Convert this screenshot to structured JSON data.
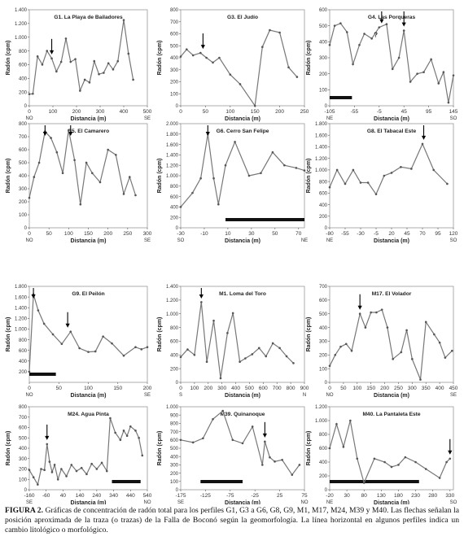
{
  "chart_data": [
    {
      "type": "line",
      "title": "G1. La Playa de Bailadores",
      "xlabel": "Distancia (m)",
      "ylabel": "Radón (cpm)",
      "xlim": [
        0,
        500
      ],
      "ylim": [
        0,
        1400
      ],
      "xticks": [
        0,
        100,
        200,
        300,
        400,
        500
      ],
      "yticks": [
        0,
        200,
        400,
        600,
        800,
        1000,
        1200,
        1400
      ],
      "x": [
        0,
        15,
        35,
        55,
        75,
        95,
        115,
        135,
        155,
        175,
        195,
        215,
        235,
        255,
        275,
        295,
        315,
        335,
        355,
        375,
        400,
        420,
        440
      ],
      "y": [
        170,
        175,
        720,
        600,
        800,
        690,
        500,
        640,
        980,
        640,
        680,
        220,
        380,
        340,
        650,
        460,
        480,
        620,
        530,
        650,
        1250,
        760,
        380
      ],
      "arrows": [
        95
      ],
      "dir_left": "NO",
      "dir_right": "SE",
      "bar": null
    },
    {
      "type": "line",
      "title": "G3. El Judío",
      "xlabel": "Distancia (m)",
      "ylabel": "Radón (cpm)",
      "xlim": [
        0,
        250
      ],
      "ylim": [
        0,
        800
      ],
      "xticks": [
        0,
        50,
        100,
        150,
        200,
        250
      ],
      "yticks": [
        0,
        100,
        200,
        300,
        400,
        500,
        600,
        700,
        800
      ],
      "x": [
        0,
        12,
        25,
        40,
        52,
        65,
        78,
        100,
        120,
        150,
        165,
        180,
        200,
        218,
        235
      ],
      "y": [
        410,
        470,
        420,
        440,
        400,
        360,
        400,
        260,
        180,
        0,
        490,
        630,
        610,
        320,
        240
      ],
      "arrows": [
        45
      ],
      "dir_left": "",
      "dir_right": "",
      "bar": null
    },
    {
      "type": "line",
      "title": "G4. Las Porqueras",
      "xlabel": "Distancia (m)",
      "ylabel": "Radón (cpm)",
      "xlim": [
        -105,
        145
      ],
      "ylim": [
        0,
        600
      ],
      "xticks": [
        -105,
        -55,
        -5,
        45,
        95,
        145
      ],
      "yticks": [
        0,
        100,
        200,
        300,
        400,
        500,
        600
      ],
      "x": [
        -105,
        -95,
        -83,
        -70,
        -58,
        -45,
        -35,
        -20,
        -5,
        10,
        22,
        35,
        45,
        58,
        72,
        85,
        100,
        115,
        125,
        135,
        145
      ],
      "y": [
        380,
        500,
        515,
        460,
        260,
        380,
        450,
        420,
        490,
        510,
        230,
        300,
        470,
        150,
        200,
        210,
        290,
        140,
        210,
        20,
        190
      ],
      "arrows": [
        0,
        45
      ],
      "dir_left": "NE",
      "dir_right": "SO",
      "question": "?",
      "bar": [
        -105,
        -60
      ]
    },
    {
      "type": "line",
      "title": "G5. El Camarero",
      "xlabel": "Distancia (m)",
      "ylabel": "Radón (cpm)",
      "xlim": [
        0,
        300
      ],
      "ylim": [
        0,
        800
      ],
      "xticks": [
        0,
        50,
        100,
        150,
        200,
        250,
        300
      ],
      "yticks": [
        0,
        100,
        200,
        300,
        400,
        500,
        600,
        700,
        800
      ],
      "x": [
        0,
        12,
        25,
        40,
        55,
        70,
        85,
        100,
        115,
        130,
        145,
        160,
        180,
        200,
        220,
        240,
        255,
        270
      ],
      "y": [
        230,
        390,
        500,
        740,
        690,
        580,
        420,
        750,
        520,
        180,
        500,
        420,
        350,
        600,
        560,
        260,
        390,
        250
      ],
      "arrows": [
        40,
        105
      ],
      "dir_left": "NO",
      "dir_right": "SE",
      "bar": null
    },
    {
      "type": "line",
      "title": "G6. Cerro San Felipe",
      "xlabel": "Distancia (m)",
      "ylabel": "Radón (cpm)",
      "xlim": [
        -30,
        75
      ],
      "ylim": [
        0,
        2000
      ],
      "xticks": [
        -30,
        -10,
        10,
        30,
        50,
        70
      ],
      "yticks": [
        0,
        200,
        400,
        600,
        800,
        1000,
        1200,
        1400,
        1600,
        1800,
        2000
      ],
      "x": [
        -30,
        -20,
        -13,
        -7,
        -2,
        2,
        8,
        16,
        28,
        38,
        48,
        58,
        68,
        75
      ],
      "y": [
        400,
        670,
        950,
        1800,
        950,
        450,
        1200,
        1650,
        1000,
        1050,
        1450,
        1200,
        1150,
        1100
      ],
      "arrows": [
        -7
      ],
      "dir_left": "SO",
      "dir_right": "NE",
      "bar": [
        8,
        75
      ]
    },
    {
      "type": "line",
      "title": "G8. El Tabacal Este",
      "xlabel": "Distancia (m)",
      "ylabel": "Radón (cpm)",
      "xlim": [
        -80,
        120
      ],
      "ylim": [
        0,
        1800
      ],
      "xticks": [
        -80,
        -55,
        -30,
        -5,
        20,
        45,
        70,
        95,
        120
      ],
      "yticks": [
        0,
        200,
        400,
        600,
        800,
        1000,
        1200,
        1400,
        1600,
        1800
      ],
      "x": [
        -80,
        -68,
        -55,
        -42,
        -30,
        -18,
        -5,
        8,
        20,
        35,
        52,
        70,
        88,
        110
      ],
      "y": [
        700,
        1000,
        760,
        1000,
        780,
        780,
        580,
        900,
        950,
        1050,
        1020,
        1450,
        1000,
        760
      ],
      "arrows": [
        72
      ],
      "dir_left": "NE",
      "dir_right": "SO",
      "bar": null
    },
    {
      "type": "line",
      "title": "G9. El Peilón",
      "xlabel": "Distancia (m)",
      "ylabel": "Radón (cpm)",
      "xlim": [
        0,
        200
      ],
      "ylim": [
        0,
        1800
      ],
      "xticks": [
        0,
        50,
        100,
        150,
        200
      ],
      "yticks": [
        200,
        400,
        600,
        800,
        1000,
        1200,
        1400,
        1600,
        1800
      ],
      "x": [
        0,
        7,
        15,
        25,
        40,
        55,
        70,
        85,
        100,
        112,
        125,
        140,
        160,
        180,
        190,
        200
      ],
      "y": [
        200,
        1650,
        1350,
        1100,
        900,
        720,
        950,
        640,
        570,
        580,
        860,
        730,
        500,
        660,
        620,
        660
      ],
      "arrows": [
        7,
        65
      ],
      "dir_left": "NO",
      "dir_right": "SE",
      "bar": [
        0,
        45
      ]
    },
    {
      "type": "line",
      "title": "M1. Loma del Toro",
      "xlabel": "Distancia (m)",
      "ylabel": "Radón (cpm)",
      "xlim": [
        0,
        900
      ],
      "ylim": [
        0,
        1400
      ],
      "xticks": [
        0,
        100,
        200,
        300,
        400,
        500,
        600,
        700,
        800,
        900
      ],
      "yticks": [
        0,
        200,
        400,
        600,
        800,
        1000,
        1200,
        1400
      ],
      "x": [
        0,
        50,
        100,
        150,
        190,
        240,
        290,
        340,
        380,
        430,
        470,
        520,
        570,
        620,
        670,
        720,
        770,
        820
      ],
      "y": [
        370,
        480,
        400,
        1170,
        300,
        900,
        60,
        720,
        1010,
        300,
        350,
        410,
        500,
        380,
        570,
        500,
        380,
        280
      ],
      "arrows": [
        150
      ],
      "dir_left": "S",
      "dir_right": "N",
      "bar": null
    },
    {
      "type": "line",
      "title": "M17. El Volador",
      "xlabel": "Distancia (m)",
      "ylabel": "Radón (cpm)",
      "xlim": [
        0,
        450
      ],
      "ylim": [
        0,
        700
      ],
      "xticks": [
        0,
        50,
        100,
        150,
        200,
        250,
        300,
        350,
        400,
        450
      ],
      "yticks": [
        0,
        100,
        200,
        300,
        400,
        500,
        600,
        700
      ],
      "x": [
        0,
        20,
        40,
        60,
        80,
        110,
        130,
        150,
        170,
        190,
        210,
        230,
        260,
        280,
        300,
        330,
        350,
        380,
        400,
        420,
        445
      ],
      "y": [
        120,
        200,
        260,
        280,
        230,
        500,
        400,
        510,
        510,
        530,
        400,
        170,
        220,
        380,
        170,
        20,
        440,
        350,
        290,
        180,
        230
      ],
      "arrows": [
        110
      ],
      "dir_left": "NO",
      "dir_right": "SE",
      "bar": null
    },
    {
      "type": "line",
      "title": "M24. Agua Pinta",
      "xlabel": "Distancia (m)",
      "ylabel": "Radón (cpm)",
      "xlim": [
        -160,
        540
      ],
      "ylim": [
        0,
        800
      ],
      "xticks": [
        -160,
        -60,
        40,
        140,
        240,
        340,
        440,
        540
      ],
      "yticks": [
        0,
        100,
        200,
        300,
        400,
        500,
        600,
        700,
        800
      ],
      "x": [
        -160,
        -135,
        -110,
        -90,
        -70,
        -55,
        -40,
        -25,
        -10,
        10,
        30,
        60,
        90,
        120,
        150,
        180,
        210,
        240,
        270,
        300,
        320,
        350,
        380,
        400,
        420,
        440,
        470,
        490,
        510
      ],
      "y": [
        190,
        120,
        50,
        200,
        190,
        440,
        270,
        170,
        240,
        100,
        200,
        130,
        240,
        180,
        210,
        150,
        250,
        200,
        260,
        180,
        690,
        550,
        480,
        570,
        520,
        610,
        570,
        500,
        330
      ],
      "arrows": [
        -55
      ],
      "dir_left": "SE",
      "dir_right": "NO",
      "bar": [
        330,
        500
      ]
    },
    {
      "type": "line",
      "title": "M39. Quinanoque",
      "xlabel": "Distancia (m)",
      "ylabel": "Radón (cpm)",
      "xlim": [
        -175,
        75
      ],
      "ylim": [
        0,
        1000
      ],
      "xticks": [
        -175,
        -125,
        -75,
        -25,
        25,
        75
      ],
      "yticks": [
        0,
        100,
        200,
        300,
        400,
        500,
        600,
        700,
        800,
        900,
        1000
      ],
      "x": [
        -175,
        -150,
        -130,
        -110,
        -90,
        -70,
        -50,
        -30,
        -10,
        -5,
        5,
        15,
        30,
        50,
        65
      ],
      "y": [
        600,
        570,
        620,
        850,
        950,
        600,
        560,
        760,
        300,
        580,
        390,
        340,
        360,
        180,
        300
      ],
      "arrows": [
        -5
      ],
      "dir_left": "SE",
      "dir_right": "NO",
      "bar": [
        -135,
        -50
      ]
    },
    {
      "type": "line",
      "title": "M40. La Pantaleta Este",
      "xlabel": "Distancia (m)",
      "ylabel": "Radón (cpm)",
      "xlim": [
        -20,
        340
      ],
      "ylim": [
        0,
        1200
      ],
      "xticks": [
        -20,
        30,
        80,
        130,
        180,
        230,
        280,
        330
      ],
      "yticks": [
        0,
        200,
        400,
        600,
        800,
        1000,
        1200
      ],
      "x": [
        -20,
        0,
        20,
        40,
        60,
        80,
        110,
        140,
        160,
        180,
        200,
        230,
        260,
        300,
        320,
        330
      ],
      "y": [
        600,
        950,
        620,
        1000,
        450,
        100,
        450,
        400,
        330,
        360,
        470,
        400,
        300,
        170,
        400,
        450
      ],
      "arrows": [
        330
      ],
      "dir_left": "NE",
      "dir_right": "SO",
      "bar": [
        -20,
        240
      ]
    }
  ],
  "caption": {
    "label": "FIGURA 2.",
    "text": " Gráficas de concentración de radón total para los perfiles G1, G3 a G6, G8, G9, M1, M17, M24, M39 y M40. Las flechas señalan la posición aproximada de la traza (o trazas) de la Falla de Boconó según la geomorfología. La línea horizontal en algunos perfiles indica un cambio litológico o morfológico."
  }
}
